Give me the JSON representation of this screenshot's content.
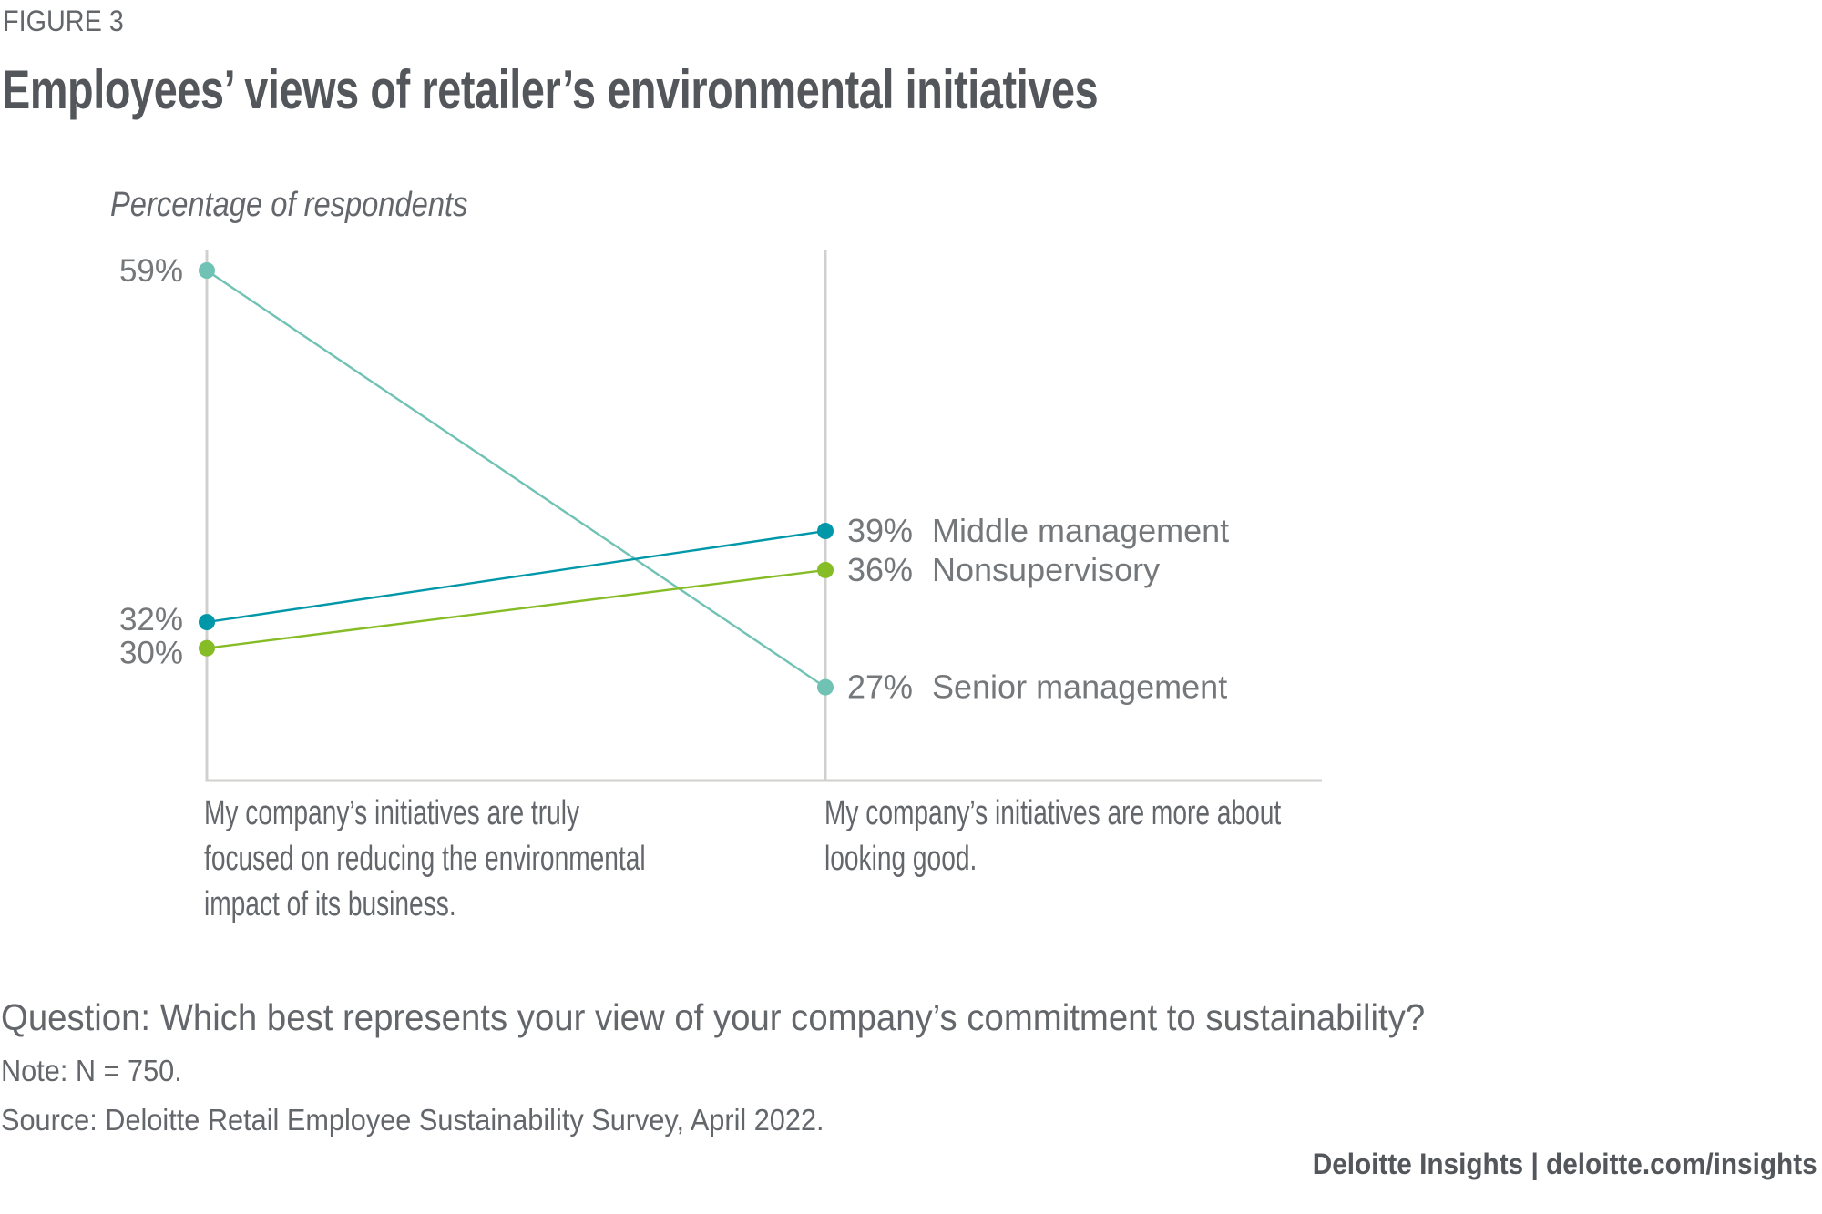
{
  "header": {
    "figure_label": "FIGURE 3",
    "title": "Employees’ views of retailer’s environmental initiatives"
  },
  "chart_data": {
    "type": "line",
    "title": "Employees’ views of retailer’s environmental initiatives",
    "subtitle": "Percentage of respondents",
    "xlabel": "",
    "ylabel": "Percentage of respondents",
    "categories": [
      "My company’s initiatives are truly focused on reducing the environmental impact of its business.",
      "My company’s initiatives are more about looking good."
    ],
    "category_lines": [
      [
        "My company’s initiatives are truly",
        "focused on reducing the environmental",
        "impact of its business."
      ],
      [
        "My company’s initiatives are more about",
        "looking good."
      ]
    ],
    "series": [
      {
        "name": "Senior management",
        "values": [
          59,
          27
        ],
        "color": "#6FC2B4"
      },
      {
        "name": "Middle management",
        "values": [
          32,
          39
        ],
        "color": "#0097A9"
      },
      {
        "name": "Nonsupervisory",
        "values": [
          30,
          36
        ],
        "color": "#86BC25"
      }
    ],
    "left_value_labels": [
      "59%",
      "32%",
      "30%"
    ],
    "right_value_labels": [
      "39%",
      "36%",
      "27%"
    ],
    "legend_placement": "right-end-labels",
    "ylim": [
      20,
      61
    ],
    "grid": false,
    "axis_color": "#D0D0CE"
  },
  "footer": {
    "question": "Question: Which best represents your view of your company’s commitment to sustainability?",
    "note": "Note: N = 750.",
    "source": "Source: Deloitte Retail Employee Sustainability Survey, April 2022.",
    "brand": "Deloitte Insights | deloitte.com/insights"
  }
}
